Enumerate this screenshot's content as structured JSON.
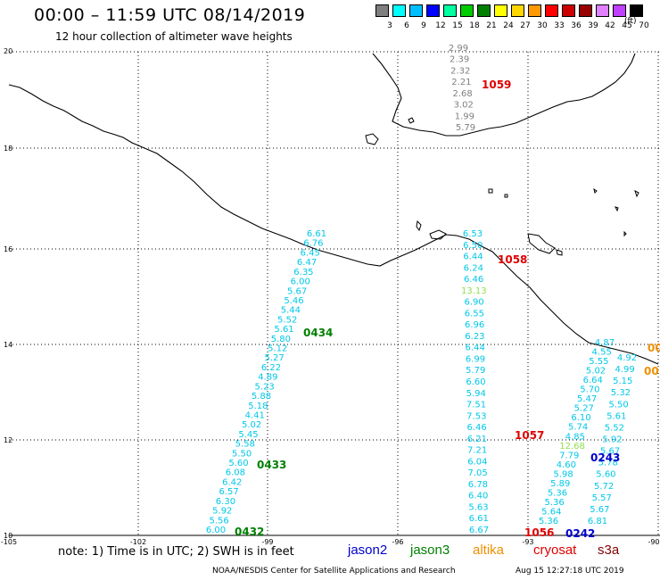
{
  "header": {
    "title": "00:00 – 11:59 UTC 08/14/2019",
    "subtitle": "12 hour collection of altimeter wave heights"
  },
  "colorbar": {
    "unit": "(ft)",
    "labels": [
      "3",
      "6",
      "9",
      "12",
      "15",
      "18",
      "21",
      "24",
      "27",
      "30",
      "33",
      "36",
      "39",
      "42",
      "45",
      "70"
    ],
    "colors": [
      "#7f7f7f",
      "#00ffff",
      "#00bfff",
      "#0000ff",
      "#00ffa0",
      "#00cc00",
      "#008000",
      "#ffff00",
      "#ffd700",
      "#ff9900",
      "#ff0000",
      "#cc0000",
      "#990000",
      "#e080ff",
      "#c040ff",
      "#000000"
    ]
  },
  "axes": {
    "lat_labels": [
      "20",
      "18",
      "16",
      "14",
      "12",
      "10"
    ],
    "lon_labels": [
      "-105",
      "-102",
      "-99",
      "-96",
      "-93",
      "-90"
    ]
  },
  "tracks": [
    {
      "color": "#00c8e8",
      "values": [
        "6.61",
        "6.76",
        "6.45",
        "6.47",
        "6.35",
        "6.00",
        "5.67",
        "5.46",
        "5.44",
        "5.52",
        "5.61",
        "5.80",
        "5.12",
        "5.27",
        "6.22",
        "4.89",
        "5.23",
        "5.88",
        "5.18",
        "4.41",
        "5.02",
        "5.45",
        "5.58",
        "5.50",
        "5.60",
        "6.08",
        "6.42",
        "6.57",
        "6.30",
        "5.92",
        "5.56",
        "6.00"
      ]
    },
    {
      "color": "#00c8e8",
      "values": [
        "6.53",
        "6.50",
        "6.44",
        "6.24",
        "6.46",
        "13.13",
        "6.90",
        "6.55",
        "6.96",
        "6.23",
        "6.44",
        "6.99",
        "5.79",
        "6.60",
        "5.94",
        "7.51",
        "7.53",
        "6.46",
        "6.21",
        "7.21",
        "6.04",
        "7.05",
        "6.78",
        "6.40",
        "5.63",
        "6.61",
        "6.67"
      ]
    },
    {
      "color": "#00c8e8",
      "values": [
        "4.87",
        "4.55",
        "5.55",
        "5.02",
        "6.64",
        "5.70",
        "5.47",
        "5.27",
        "6.10",
        "5.74",
        "4.85",
        "12.68",
        "7.79",
        "4.60",
        "5.98",
        "5.89",
        "5.36",
        "5.36",
        "5.64",
        "5.36"
      ]
    },
    {
      "color": "#00c8e8",
      "values": [
        "4.92",
        "4.99",
        "5.15",
        "5.32",
        "5.50",
        "5.61",
        "5.52",
        "5.92",
        "5.67",
        "5.78",
        "5.60",
        "5.72",
        "5.57",
        "5.67",
        "6.81"
      ]
    },
    {
      "color": "#808080",
      "values": [
        "2.99",
        "2.39",
        "2.32",
        "2.21",
        "2.68",
        "3.02",
        "1.99",
        "5.79"
      ]
    }
  ],
  "pass_labels": [
    {
      "text": "0434",
      "color": "#008000"
    },
    {
      "text": "0433",
      "color": "#008000"
    },
    {
      "text": "0432",
      "color": "#008000"
    },
    {
      "text": "1059",
      "color": "#e00000"
    },
    {
      "text": "1058",
      "color": "#e00000"
    },
    {
      "text": "1057",
      "color": "#e00000"
    },
    {
      "text": "1056",
      "color": "#e00000"
    },
    {
      "text": "0243",
      "color": "#0000cc"
    },
    {
      "text": "0242",
      "color": "#0000cc"
    },
    {
      "text": "00",
      "color": "#f09000"
    },
    {
      "text": "00",
      "color": "#f09000"
    }
  ],
  "footer": {
    "note": "note: 1) Time is in UTC; 2) SWH is in feet",
    "satellites": [
      {
        "name": "jason2",
        "color": "#0000cc"
      },
      {
        "name": "jason3",
        "color": "#008000"
      },
      {
        "name": "altika",
        "color": "#f09000"
      },
      {
        "name": "cryosat",
        "color": "#e00000"
      },
      {
        "name": "s3a",
        "color": "#800000"
      }
    ],
    "credit": "NOAA/NESDIS Center for Satellite Applications and Research",
    "timestamp": "Aug 15 12:27:18 UTC 2019"
  }
}
